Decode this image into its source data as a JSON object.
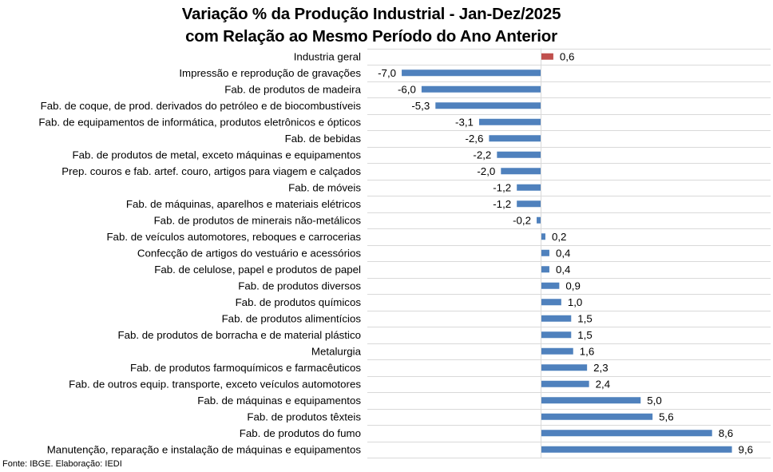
{
  "chart_data": {
    "type": "bar",
    "orientation": "horizontal",
    "title": "Variação % da Produção Industrial - Jan-Dez/2025",
    "subtitle": "com Relação ao Mesmo Período do Ano Anterior",
    "xlabel": "",
    "ylabel": "",
    "xlim": [
      -7.0,
      9.6
    ],
    "grid": true,
    "legend": "none",
    "colors": {
      "default": "#4F81BD",
      "highlight": "#C0504D"
    },
    "categories": [
      "Industria geral",
      "Impressão e reprodução de gravações",
      "Fab. de produtos de madeira",
      "Fab. de coque, de prod. derivados do petróleo e de biocombustíveis",
      "Fab. de equipamentos de informática, produtos eletrônicos e ópticos",
      "Fab. de bebidas",
      "Fab. de produtos de metal, exceto máquinas e equipamentos",
      "Prep. couros e fab. artef. couro, artigos para viagem e calçados",
      "Fab. de móveis",
      "Fab. de máquinas, aparelhos e materiais elétricos",
      "Fab. de produtos de minerais não-metálicos",
      "Fab. de veículos automotores, reboques e carrocerias",
      "Confecção de artigos do vestuário e acessórios",
      "Fab. de celulose, papel e produtos de papel",
      "Fab. de produtos diversos",
      "Fab. de produtos químicos",
      "Fab. de produtos alimentícios",
      "Fab. de produtos de borracha e de material plástico",
      "Metalurgia",
      "Fab. de produtos farmoquímicos e farmacêuticos",
      "Fab. de outros equip. transporte, exceto veículos automotores",
      "Fab. de máquinas e equipamentos",
      "Fab. de produtos têxteis",
      "Fab. de produtos do fumo",
      "Manutenção, reparação e instalação de máquinas e equipamentos"
    ],
    "values": [
      0.6,
      -7.0,
      -6.0,
      -5.3,
      -3.1,
      -2.6,
      -2.2,
      -2.0,
      -1.2,
      -1.2,
      -0.2,
      0.2,
      0.4,
      0.4,
      0.9,
      1.0,
      1.5,
      1.5,
      1.6,
      2.3,
      2.4,
      5.0,
      5.6,
      8.6,
      9.6
    ],
    "value_labels": [
      "0,6",
      "-7,0",
      "-6,0",
      "-5,3",
      "-3,1",
      "-2,6",
      "-2,2",
      "-2,0",
      "-1,2",
      "-1,2",
      "-0,2",
      "0,2",
      "0,4",
      "0,4",
      "0,9",
      "1,0",
      "1,5",
      "1,5",
      "1,6",
      "2,3",
      "2,4",
      "5,0",
      "5,6",
      "8,6",
      "9,6"
    ],
    "highlight_index": 0
  },
  "source": "Fonte:  IBGE. Elaboração: IEDI"
}
